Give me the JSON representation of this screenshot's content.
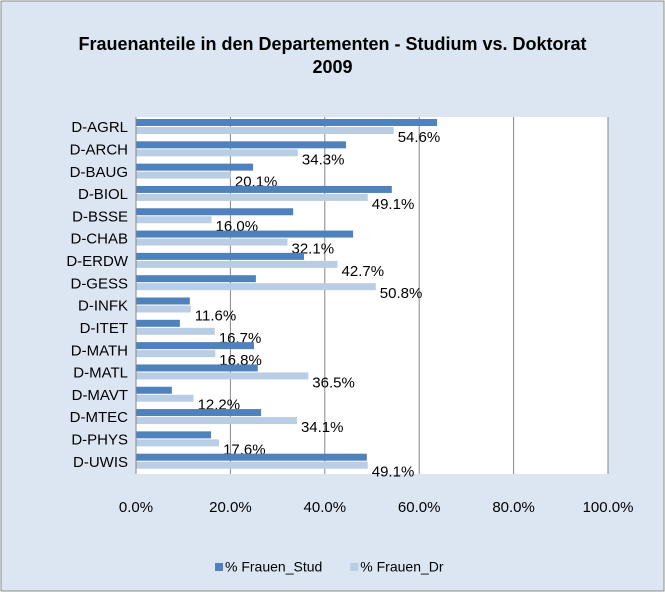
{
  "chart_data": {
    "type": "hbar",
    "title": "Frauenanteile in den Departementen - Studium vs. Doktorat 2009",
    "categories": [
      "D-AGRL",
      "D-ARCH",
      "D-BAUG",
      "D-BIOL",
      "D-BSSE",
      "D-CHAB",
      "D-ERDW",
      "D-GESS",
      "D-INFK",
      "D-ITET",
      "D-MATH",
      "D-MATL",
      "D-MAVT",
      "D-MTEC",
      "D-PHYS",
      "D-UWIS"
    ],
    "series": [
      {
        "name": "% Frauen_Stud",
        "color": "#4f81bd",
        "values": [
          63.8,
          44.5,
          24.8,
          54.2,
          33.3,
          46.0,
          35.6,
          25.4,
          11.4,
          9.3,
          25.0,
          25.8,
          7.6,
          26.5,
          15.9,
          48.9
        ]
      },
      {
        "name": "% Frauen_Dr",
        "color": "#b9cde5",
        "values": [
          54.6,
          34.3,
          20.1,
          49.1,
          16.0,
          32.1,
          42.7,
          50.8,
          11.6,
          16.7,
          16.8,
          36.5,
          12.2,
          34.1,
          17.6,
          49.1
        ],
        "value_labels": [
          "54.6%",
          "34.3%",
          "20.1%",
          "49.1%",
          "16.0%",
          "32.1%",
          "42.7%",
          "50.8%",
          "11.6%",
          "16.7%",
          "16.8%",
          "36.5%",
          "12.2%",
          "34.1%",
          "17.6%",
          "49.1%"
        ]
      }
    ],
    "xlim": [
      0,
      100
    ],
    "xticks": [
      {
        "value": 0,
        "label": "0.0%"
      },
      {
        "value": 20,
        "label": "20.0%"
      },
      {
        "value": 40,
        "label": "40.0%"
      },
      {
        "value": 60,
        "label": "60.0%"
      },
      {
        "value": 80,
        "label": "80.0%"
      },
      {
        "value": 100,
        "label": "100.0%"
      }
    ],
    "grid": true,
    "legend": "bottom"
  }
}
